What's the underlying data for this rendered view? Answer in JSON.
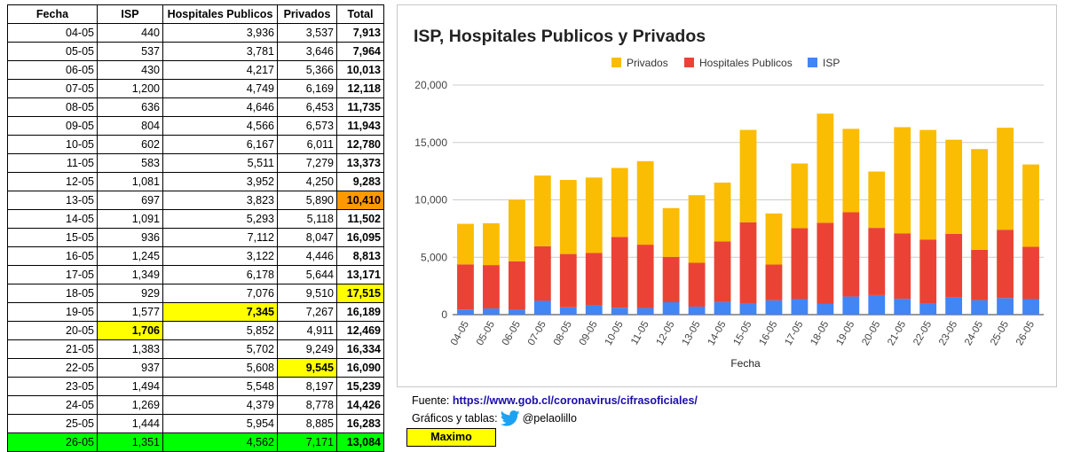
{
  "table": {
    "headers": [
      "Fecha",
      "ISP",
      "Hospitales Publicos",
      "Privados",
      "Total"
    ],
    "rows": [
      {
        "fecha": "04-05",
        "isp": "440",
        "hosp": "3,936",
        "priv": "3,537",
        "total": "7,913"
      },
      {
        "fecha": "05-05",
        "isp": "537",
        "hosp": "3,781",
        "priv": "3,646",
        "total": "7,964"
      },
      {
        "fecha": "06-05",
        "isp": "430",
        "hosp": "4,217",
        "priv": "5,366",
        "total": "10,013"
      },
      {
        "fecha": "07-05",
        "isp": "1,200",
        "hosp": "4,749",
        "priv": "6,169",
        "total": "12,118"
      },
      {
        "fecha": "08-05",
        "isp": "636",
        "hosp": "4,646",
        "priv": "6,453",
        "total": "11,735"
      },
      {
        "fecha": "09-05",
        "isp": "804",
        "hosp": "4,566",
        "priv": "6,573",
        "total": "11,943"
      },
      {
        "fecha": "10-05",
        "isp": "602",
        "hosp": "6,167",
        "priv": "6,011",
        "total": "12,780"
      },
      {
        "fecha": "11-05",
        "isp": "583",
        "hosp": "5,511",
        "priv": "7,279",
        "total": "13,373"
      },
      {
        "fecha": "12-05",
        "isp": "1,081",
        "hosp": "3,952",
        "priv": "4,250",
        "total": "9,283"
      },
      {
        "fecha": "13-05",
        "isp": "697",
        "hosp": "3,823",
        "priv": "5,890",
        "total": "10,410",
        "hl_total": "orange"
      },
      {
        "fecha": "14-05",
        "isp": "1,091",
        "hosp": "5,293",
        "priv": "5,118",
        "total": "11,502"
      },
      {
        "fecha": "15-05",
        "isp": "936",
        "hosp": "7,112",
        "priv": "8,047",
        "total": "16,095"
      },
      {
        "fecha": "16-05",
        "isp": "1,245",
        "hosp": "3,122",
        "priv": "4,446",
        "total": "8,813"
      },
      {
        "fecha": "17-05",
        "isp": "1,349",
        "hosp": "6,178",
        "priv": "5,644",
        "total": "13,171"
      },
      {
        "fecha": "18-05",
        "isp": "929",
        "hosp": "7,076",
        "priv": "9,510",
        "total": "17,515",
        "hl_total": "yellow"
      },
      {
        "fecha": "19-05",
        "isp": "1,577",
        "hosp": "7,345",
        "priv": "7,267",
        "total": "16,189",
        "hl_hosp": "yellow"
      },
      {
        "fecha": "20-05",
        "isp": "1,706",
        "hosp": "5,852",
        "priv": "4,911",
        "total": "12,469",
        "hl_isp": "yellow"
      },
      {
        "fecha": "21-05",
        "isp": "1,383",
        "hosp": "5,702",
        "priv": "9,249",
        "total": "16,334"
      },
      {
        "fecha": "22-05",
        "isp": "937",
        "hosp": "5,608",
        "priv": "9,545",
        "total": "16,090",
        "hl_priv": "yellow"
      },
      {
        "fecha": "23-05",
        "isp": "1,494",
        "hosp": "5,548",
        "priv": "8,197",
        "total": "15,239"
      },
      {
        "fecha": "24-05",
        "isp": "1,269",
        "hosp": "4,379",
        "priv": "8,778",
        "total": "14,426"
      },
      {
        "fecha": "25-05",
        "isp": "1,444",
        "hosp": "5,954",
        "priv": "8,885",
        "total": "16,283"
      },
      {
        "fecha": "26-05",
        "isp": "1,351",
        "hosp": "4,562",
        "priv": "7,171",
        "total": "13,084",
        "hl_row": "green"
      }
    ]
  },
  "colors": {
    "isp": "#4285f4",
    "hosp": "#ea4335",
    "priv": "#fbbc04",
    "highlight_yellow": "#ffff00",
    "highlight_orange": "#ff9900",
    "highlight_green": "#00ff00",
    "grid": "#cccccc",
    "axis": "#333333"
  },
  "chart_data": {
    "type": "bar",
    "stacked": true,
    "title": "ISP, Hospitales Publicos y Privados",
    "xlabel": "Fecha",
    "ylabel": "",
    "ylim": [
      0,
      20000
    ],
    "yticks": [
      0,
      5000,
      10000,
      15000,
      20000
    ],
    "ytick_labels": [
      "0",
      "5,000",
      "10,000",
      "15,000",
      "20,000"
    ],
    "grid": true,
    "legend_position": "top",
    "legend_order": [
      "Privados",
      "Hospitales Publicos",
      "ISP"
    ],
    "categories": [
      "04-05",
      "05-05",
      "06-05",
      "07-05",
      "08-05",
      "09-05",
      "10-05",
      "11-05",
      "12-05",
      "13-05",
      "14-05",
      "15-05",
      "16-05",
      "17-05",
      "18-05",
      "19-05",
      "20-05",
      "21-05",
      "22-05",
      "23-05",
      "24-05",
      "25-05",
      "26-05"
    ],
    "series": [
      {
        "name": "ISP",
        "values": [
          440,
          537,
          430,
          1200,
          636,
          804,
          602,
          583,
          1081,
          697,
          1091,
          936,
          1245,
          1349,
          929,
          1577,
          1706,
          1383,
          937,
          1494,
          1269,
          1444,
          1351
        ]
      },
      {
        "name": "Hospitales Publicos",
        "values": [
          3936,
          3781,
          4217,
          4749,
          4646,
          4566,
          6167,
          5511,
          3952,
          3823,
          5293,
          7112,
          3122,
          6178,
          7076,
          7345,
          5852,
          5702,
          5608,
          5548,
          4379,
          5954,
          4562
        ]
      },
      {
        "name": "Privados",
        "values": [
          3537,
          3646,
          5366,
          6169,
          6453,
          6573,
          6011,
          7279,
          4250,
          5890,
          5118,
          8047,
          4446,
          5644,
          9510,
          7267,
          4911,
          9249,
          9545,
          8197,
          8778,
          8885,
          7171
        ]
      }
    ]
  },
  "footer": {
    "fuente_label": "Fuente: ",
    "fuente_url": "https://www.gob.cl/coronavirus/cifrasoficiales/",
    "graficos_label": "Gráficos y tablas:",
    "twitter_icon": "twitter-bird-icon",
    "twitter_handle": "@pelaolillo",
    "maximo_label": "Maximo"
  }
}
